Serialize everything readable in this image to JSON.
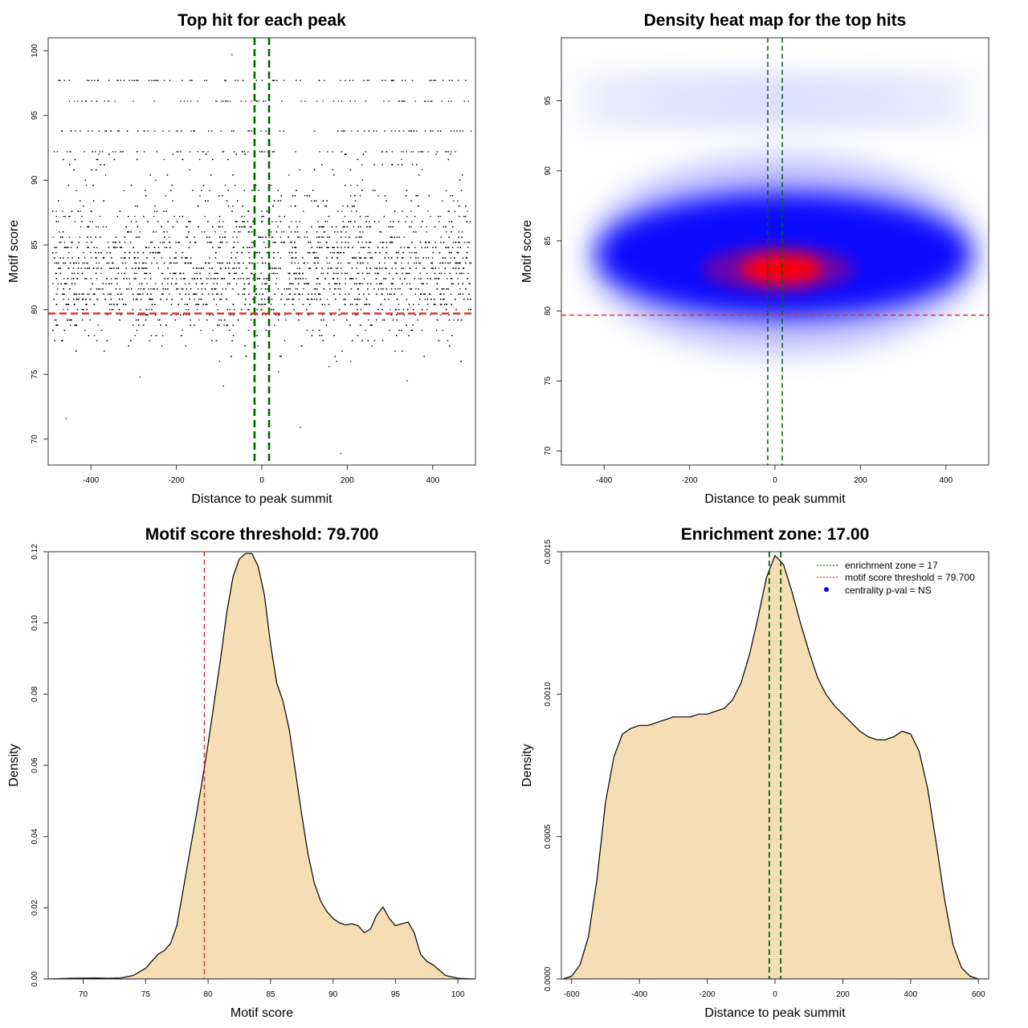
{
  "chart_data": [
    {
      "type": "scatter",
      "title": "Top hit for each peak",
      "xlabel": "Distance to peak summit",
      "ylabel": "Motif score",
      "xlim": [
        -500,
        500
      ],
      "ylim": [
        68,
        101
      ],
      "xticks": [
        -400,
        -200,
        0,
        200,
        400
      ],
      "yticks": [
        70,
        75,
        80,
        85,
        90,
        95,
        100
      ],
      "reference_lines": {
        "vertical": [
          -17,
          17
        ],
        "horizontal": [
          79.7
        ]
      },
      "colors": {
        "points": "#000000",
        "vertical_lines": "#006400",
        "horizontal_line": "#e03030"
      },
      "point_distribution": {
        "x_range": [
          -490,
          490
        ],
        "y_core_mean": 83,
        "y_core_sd": 2.6,
        "n": 4200
      },
      "rows": [
        {
          "y": 97.7,
          "x_range": [
            -490,
            490
          ]
        },
        {
          "y": 96.1,
          "x_range": [
            -460,
            490
          ]
        },
        {
          "y": 93.8,
          "x_range": [
            -470,
            490
          ]
        },
        {
          "y": 92.2,
          "x_range": [
            -490,
            490
          ]
        }
      ],
      "outliers": [
        {
          "x": -458,
          "y": 71.6
        },
        {
          "x": -70,
          "y": 99.7
        },
        {
          "x": 90,
          "y": 70.9
        },
        {
          "x": 185,
          "y": 68.9
        },
        {
          "x": 340,
          "y": 74.5
        },
        {
          "x": -285,
          "y": 74.8
        },
        {
          "x": -90,
          "y": 74.1
        }
      ]
    },
    {
      "type": "heatmap",
      "title": "Density heat map for the top hits",
      "xlabel": "Distance to peak summit",
      "ylabel": "Motif score",
      "xlim": [
        -500,
        500
      ],
      "ylim": [
        69,
        99.5
      ],
      "xticks": [
        -400,
        -200,
        0,
        200,
        400
      ],
      "yticks": [
        70,
        75,
        80,
        85,
        90,
        95
      ],
      "reference_lines": {
        "vertical": [
          -17,
          17
        ],
        "horizontal": [
          79.7
        ]
      },
      "colors": {
        "low": "#ffffff",
        "mid": "#0000ff",
        "high": "#ff0000",
        "vertical_lines": "#006400",
        "horizontal_line": "#e03030"
      },
      "hotspot": {
        "x": 0,
        "y": 83
      },
      "bands": [
        {
          "y": 84,
          "x_range": [
            -420,
            460
          ]
        },
        {
          "y": 94,
          "x_range": [
            -480,
            480
          ]
        },
        {
          "y": 96,
          "x_range": [
            -480,
            480
          ]
        }
      ]
    },
    {
      "type": "area",
      "title": "Motif score threshold: 79.700",
      "xlabel": "Motif score",
      "ylabel": "Density",
      "xlim": [
        67.2,
        101.4
      ],
      "ylim": [
        0,
        0.12
      ],
      "xticks": [
        70,
        75,
        80,
        85,
        90,
        95,
        100
      ],
      "yticks": [
        0.0,
        0.02,
        0.04,
        0.06,
        0.08,
        0.1,
        0.12
      ],
      "ytick_labels": [
        "0.00",
        "0.02",
        "0.04",
        "0.06",
        "0.08",
        "0.10",
        "0.12"
      ],
      "threshold": 79.7,
      "colors": {
        "fill": "#f5deb3",
        "stroke": "#000000",
        "threshold": "#e03030"
      },
      "x": [
        67.2,
        69,
        71,
        72,
        73,
        74,
        75,
        75.5,
        76,
        76.5,
        77,
        77.5,
        78,
        78.5,
        79,
        79.5,
        80,
        80.5,
        81,
        81.5,
        82,
        82.5,
        83,
        83.5,
        84,
        84.5,
        85,
        85.5,
        86,
        86.5,
        87,
        87.5,
        88,
        88.5,
        89,
        89.5,
        90,
        90.5,
        91,
        91.5,
        92,
        92.5,
        93,
        93.5,
        94,
        94.5,
        95,
        95.5,
        96,
        96.5,
        97,
        97.5,
        98,
        98.5,
        99,
        100,
        101.4
      ],
      "y": [
        0,
        0.0002,
        0.0003,
        0.0002,
        0.0003,
        0.001,
        0.003,
        0.005,
        0.007,
        0.008,
        0.01,
        0.015,
        0.025,
        0.035,
        0.045,
        0.055,
        0.066,
        0.078,
        0.09,
        0.103,
        0.113,
        0.118,
        0.1195,
        0.1195,
        0.116,
        0.108,
        0.094,
        0.083,
        0.078,
        0.07,
        0.058,
        0.046,
        0.035,
        0.027,
        0.022,
        0.019,
        0.017,
        0.0158,
        0.0152,
        0.0155,
        0.015,
        0.013,
        0.014,
        0.018,
        0.0202,
        0.017,
        0.015,
        0.0155,
        0.016,
        0.013,
        0.007,
        0.005,
        0.004,
        0.0025,
        0.001,
        0.0002,
        0
      ]
    },
    {
      "type": "area",
      "title": "Enrichment zone: 17.00",
      "xlabel": "Distance to peak summit",
      "ylabel": "Density",
      "xlim": [
        -630,
        630
      ],
      "ylim": [
        0,
        0.0015
      ],
      "xticks": [
        -600,
        -400,
        -200,
        0,
        200,
        400,
        600
      ],
      "yticks": [
        0,
        0.0005,
        0.001,
        0.0015
      ],
      "ytick_labels": [
        "0.0000",
        "0.0005",
        "0.0010",
        "0.0015"
      ],
      "reference_lines": {
        "vertical": [
          -17,
          17
        ]
      },
      "colors": {
        "fill": "#f5deb3",
        "stroke": "#000000",
        "vertical_lines": "#006400"
      },
      "legend": {
        "placement": "top-right",
        "items": [
          {
            "label": "enrichment zone = 17",
            "symbol": "dotted-line",
            "color": "#006400"
          },
          {
            "label": "motif score threshold = 79.700",
            "symbol": "dotted-line",
            "color": "#e03030"
          },
          {
            "label": "centrality p-val = NS",
            "symbol": "dot",
            "color": "#0000ff"
          }
        ]
      },
      "x": [
        -625,
        -600,
        -575,
        -550,
        -525,
        -500,
        -475,
        -450,
        -425,
        -400,
        -375,
        -350,
        -325,
        -300,
        -275,
        -250,
        -225,
        -200,
        -175,
        -150,
        -125,
        -100,
        -75,
        -50,
        -25,
        0,
        25,
        50,
        75,
        100,
        125,
        150,
        175,
        200,
        225,
        250,
        275,
        300,
        325,
        350,
        375,
        400,
        425,
        450,
        475,
        500,
        525,
        550,
        575,
        600,
        625
      ],
      "y": [
        0,
        1e-05,
        5e-05,
        0.00015,
        0.00035,
        0.00062,
        0.00078,
        0.00086,
        0.00088,
        0.00089,
        0.00089,
        0.0009,
        0.00091,
        0.00092,
        0.00092,
        0.00092,
        0.00093,
        0.00093,
        0.00094,
        0.00095,
        0.00098,
        0.00104,
        0.00114,
        0.00127,
        0.00141,
        0.001487,
        0.001455,
        0.00136,
        0.00125,
        0.00115,
        0.00106,
        0.001,
        0.00096,
        0.00093,
        0.0009,
        0.00087,
        0.00085,
        0.00084,
        0.00084,
        0.00085,
        0.00087,
        0.00086,
        0.0008,
        0.00067,
        0.00048,
        0.00028,
        0.00012,
        4e-05,
        1e-05,
        0,
        0
      ]
    }
  ]
}
